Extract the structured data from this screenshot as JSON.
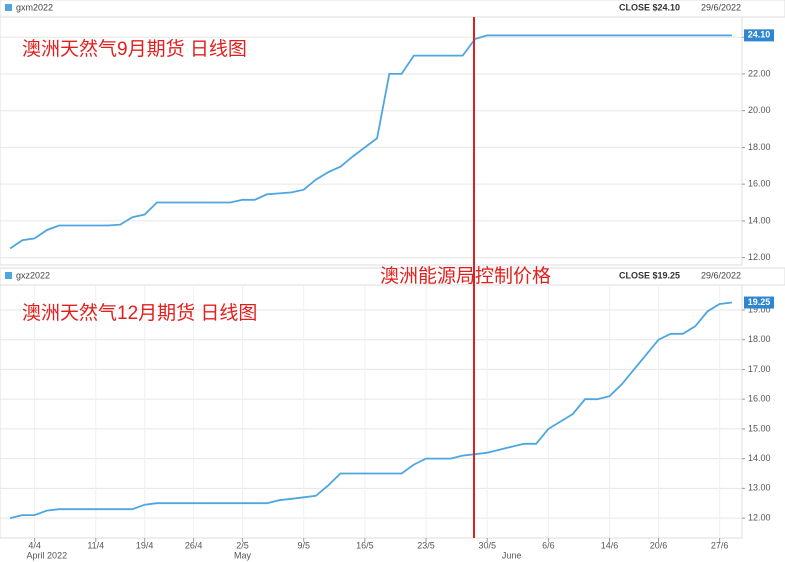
{
  "chart_data": [
    {
      "type": "line",
      "series": [
        {
          "name": "gxm2022",
          "color": "#4ea6e0",
          "values": [
            12.5,
            12.95,
            13.05,
            13.5,
            13.75,
            13.75,
            13.75,
            13.75,
            13.75,
            13.8,
            14.2,
            14.35,
            15.0,
            15.0,
            15.0,
            15.0,
            15.0,
            15.0,
            15.0,
            15.15,
            15.15,
            15.45,
            15.5,
            15.55,
            15.7,
            16.25,
            16.65,
            16.95,
            17.5,
            18.0,
            18.5,
            22.0,
            22.0,
            23.0,
            23.0,
            23.0,
            23.0,
            23.0,
            23.9,
            24.1,
            24.1,
            24.1,
            24.1,
            24.1,
            24.1,
            24.1,
            24.1,
            24.1,
            24.1,
            24.1,
            24.1,
            24.1,
            24.1,
            24.1,
            24.1,
            24.1,
            24.1,
            24.1,
            24.1,
            24.1
          ],
          "value_labels": [
            null,
            null,
            null,
            null,
            null,
            null,
            null,
            null,
            null,
            null,
            null,
            null,
            null,
            null,
            null,
            null,
            null,
            null,
            null,
            null,
            null,
            null,
            null,
            null,
            null,
            null,
            null,
            null,
            null,
            null,
            null,
            null,
            null,
            null,
            null,
            null,
            null,
            null,
            null,
            null,
            null,
            null,
            null,
            null,
            null,
            null,
            null,
            null,
            null,
            null,
            null,
            null,
            null,
            null,
            null,
            null,
            null,
            null,
            null,
            "24.10"
          ]
        }
      ],
      "close": "CLOSE $24.10",
      "date": "29/6/2022",
      "annotations": [
        "澳洲天然气9月期货 日线图"
      ],
      "ylim": [
        11.6,
        25.1
      ],
      "yticks": [
        {
          "value": 12,
          "label": "12.00"
        },
        {
          "value": 14,
          "label": "14.00"
        },
        {
          "value": 16,
          "label": "16.00"
        },
        {
          "value": 18,
          "label": "18.00"
        },
        {
          "value": 20,
          "label": "20.00"
        },
        {
          "value": 22,
          "label": "22.00"
        },
        {
          "value": 24,
          "label": "24.00"
        }
      ],
      "grid": true
    },
    {
      "type": "line",
      "categories": [
        null,
        null,
        "4/4",
        null,
        null,
        null,
        null,
        "11/4",
        null,
        null,
        null,
        "19/4",
        null,
        null,
        null,
        "26/4",
        null,
        null,
        null,
        "2/5",
        null,
        null,
        null,
        null,
        "9/5",
        null,
        null,
        null,
        null,
        "16/5",
        null,
        null,
        null,
        null,
        "23/5",
        null,
        null,
        null,
        null,
        "30/5",
        null,
        null,
        null,
        null,
        "6/6",
        null,
        null,
        null,
        null,
        "14/6",
        null,
        null,
        null,
        "20/6",
        null,
        null,
        null,
        null,
        "27/6",
        null
      ],
      "months": [
        null,
        null,
        null,
        "April 2022",
        null,
        null,
        null,
        null,
        null,
        null,
        null,
        null,
        null,
        null,
        null,
        null,
        null,
        null,
        null,
        "May",
        null,
        null,
        null,
        null,
        null,
        null,
        null,
        null,
        null,
        null,
        null,
        null,
        null,
        null,
        null,
        null,
        null,
        null,
        null,
        null,
        null,
        "June",
        null,
        null,
        null,
        null,
        null,
        null,
        null,
        null,
        null,
        null,
        null,
        null,
        null,
        null,
        null,
        null,
        null,
        null
      ],
      "series": [
        {
          "name": "gxz2022",
          "color": "#4ea6e0",
          "values": [
            12.0,
            12.1,
            12.1,
            12.25,
            12.3,
            12.3,
            12.3,
            12.3,
            12.3,
            12.3,
            12.3,
            12.45,
            12.5,
            12.5,
            12.5,
            12.5,
            12.5,
            12.5,
            12.5,
            12.5,
            12.5,
            12.5,
            12.6,
            12.65,
            12.7,
            12.75,
            13.1,
            13.5,
            13.5,
            13.5,
            13.5,
            13.5,
            13.5,
            13.8,
            14.0,
            14.0,
            14.0,
            14.1,
            14.15,
            14.2,
            14.3,
            14.4,
            14.5,
            14.5,
            15.0,
            15.25,
            15.5,
            16.0,
            16.0,
            16.1,
            16.5,
            17.0,
            17.5,
            18.0,
            18.2,
            18.2,
            18.45,
            18.95,
            19.2,
            19.25
          ],
          "value_labels": [
            null,
            null,
            null,
            null,
            null,
            null,
            null,
            null,
            null,
            null,
            null,
            null,
            null,
            null,
            null,
            null,
            null,
            null,
            null,
            null,
            null,
            null,
            null,
            null,
            null,
            null,
            null,
            null,
            null,
            null,
            null,
            null,
            null,
            null,
            null,
            null,
            null,
            null,
            null,
            null,
            null,
            null,
            null,
            null,
            null,
            null,
            null,
            null,
            null,
            null,
            null,
            null,
            null,
            null,
            null,
            null,
            null,
            null,
            null,
            "19.25"
          ]
        }
      ],
      "close": "CLOSE $19.25",
      "date": "29/6/2022",
      "annotations": [
        "澳洲天然气12月期货 日线图",
        "澳洲能源局控制价格"
      ],
      "ylim": [
        11.33,
        19.84
      ],
      "yticks": [
        {
          "value": 12,
          "label": "12.00"
        },
        {
          "value": 13,
          "label": "13.00"
        },
        {
          "value": 14,
          "label": "14.00"
        },
        {
          "value": 15,
          "label": "15.00"
        },
        {
          "value": 16,
          "label": "16.00"
        },
        {
          "value": 17,
          "label": "17.00"
        },
        {
          "value": 18,
          "label": "18.00"
        },
        {
          "value": 19,
          "label": "19.00"
        }
      ],
      "grid": true
    }
  ]
}
